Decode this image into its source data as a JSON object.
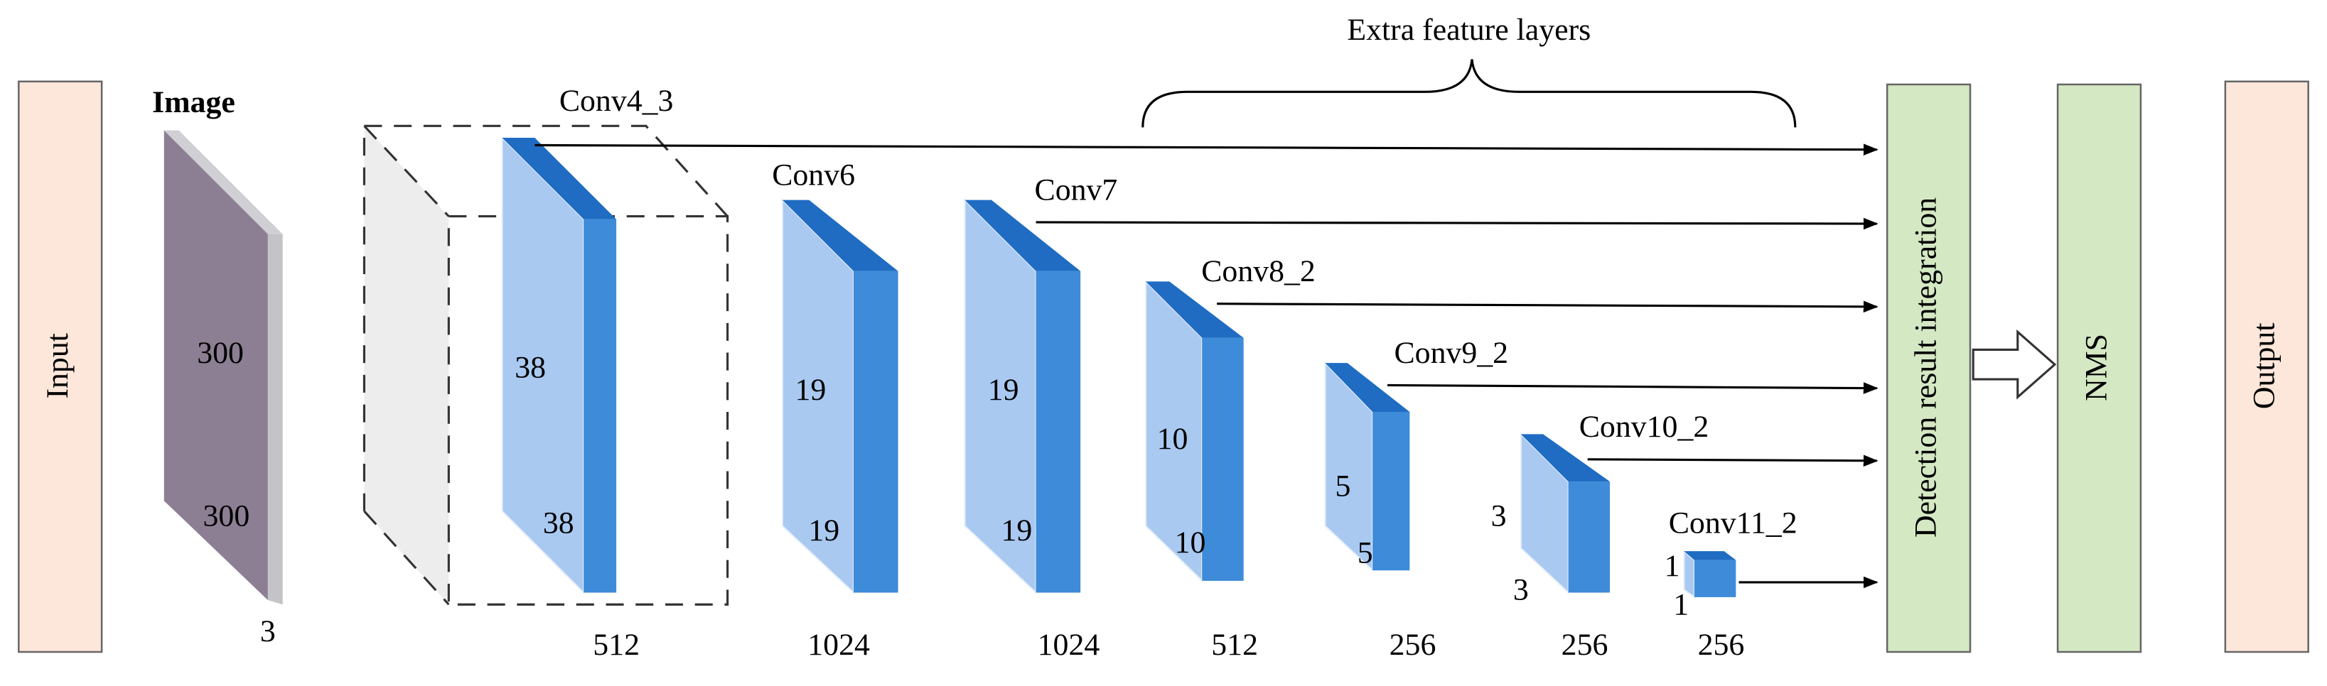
{
  "header": {
    "title": "Extra feature layers"
  },
  "boxes": [
    {
      "label": "Input"
    },
    {
      "label": "Detection result integration"
    },
    {
      "label": "NMS"
    },
    {
      "label": "Output"
    }
  ],
  "image": {
    "label": "Image",
    "dims": [
      "300",
      "300"
    ],
    "channels": "3"
  },
  "layers": [
    {
      "label": "Conv4_3",
      "dims": [
        "38",
        "38"
      ],
      "channels": "512"
    },
    {
      "label": "Conv6",
      "dims": [
        "19",
        "19"
      ],
      "channels": "1024"
    },
    {
      "label": "Conv7",
      "dims": [
        "19",
        "19"
      ],
      "channels": "1024"
    },
    {
      "label": "Conv8_2",
      "dims": [
        "10",
        "10"
      ],
      "channels": "512"
    },
    {
      "label": "Conv9_2",
      "dims": [
        "5",
        "5"
      ],
      "channels": "256"
    },
    {
      "label": "Conv10_2",
      "dims": [
        "3",
        "3"
      ],
      "channels": "256"
    },
    {
      "label": "Conv11_2",
      "dims": [
        "1",
        "1"
      ],
      "channels": "256"
    }
  ]
}
